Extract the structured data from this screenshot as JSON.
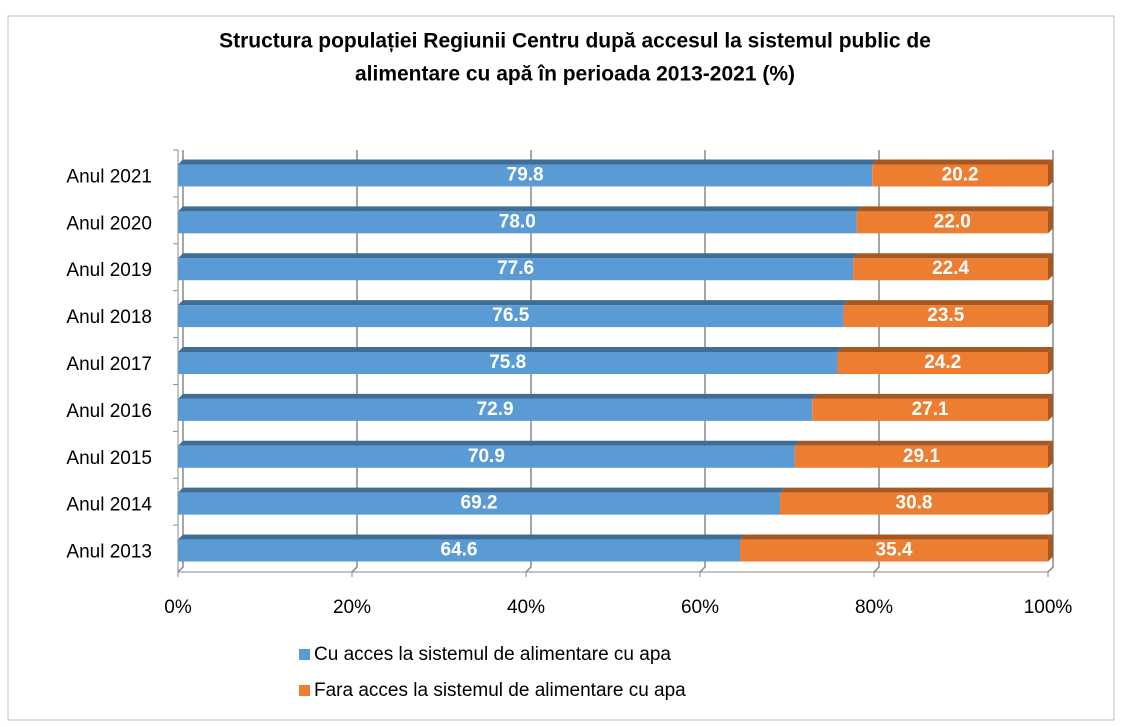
{
  "chart_data": {
    "type": "stacked_barh",
    "title": [
      "Structura populației Regiunii Centru după accesul la sistemul public de",
      "alimentare cu apă în perioada 2013-2021 (%)"
    ],
    "categories": [
      "Anul 2021",
      "Anul 2020",
      "Anul 2019",
      "Anul 2018",
      "Anul 2017",
      "Anul 2016",
      "Anul 2015",
      "Anul 2014",
      "Anul 2013"
    ],
    "series": [
      {
        "name": "Cu acces la sistemul de alimentare cu apa",
        "color": "#5b9bd5",
        "values": [
          79.8,
          78,
          77.6,
          76.5,
          75.8,
          72.9,
          70.9,
          69.2,
          64.6
        ],
        "value_labels": [
          "79.8",
          "78.0",
          "77.6",
          "76.5",
          "75.8",
          "72.9",
          "70.9",
          "69.2",
          "64.6"
        ]
      },
      {
        "name": "Fara acces la sistemul de alimentare cu apa",
        "color": "#ed7d31",
        "values": [
          20.2,
          22,
          22.4,
          23.5,
          24.2,
          27.1,
          29.1,
          30.8,
          35.4
        ],
        "value_labels": [
          "20.2",
          "22.0",
          "22.4",
          "23.5",
          "24.2",
          "27.1",
          "29.1",
          "30.8",
          "35.4"
        ]
      }
    ],
    "xlim": [
      0,
      100
    ],
    "xticks": [
      {
        "value": 0,
        "label": "0%"
      },
      {
        "value": 20,
        "label": "20%"
      },
      {
        "value": 40,
        "label": "40%"
      },
      {
        "value": 60,
        "label": "60%"
      },
      {
        "value": 80,
        "label": "80%"
      },
      {
        "value": 100,
        "label": "100%"
      }
    ],
    "grid": true
  }
}
